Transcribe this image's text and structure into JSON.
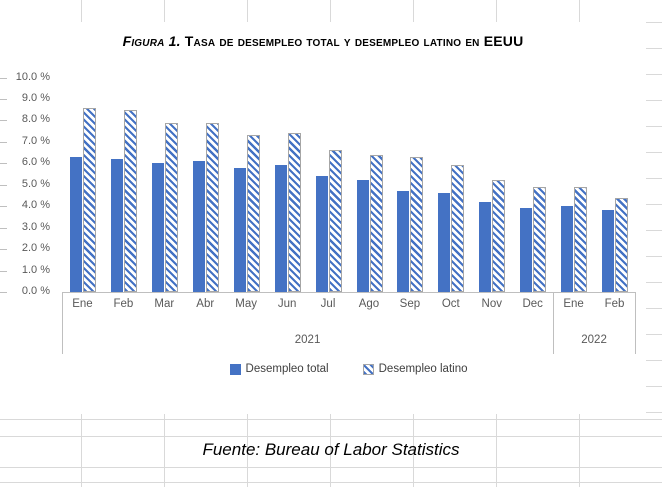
{
  "chart": {
    "title_prefix": "Figura 1.",
    "title_rest": " Tasa de desempleo total y desempleo latino en EEUU"
  },
  "chart_data": {
    "type": "bar",
    "title": "Figura 1. Tasa de desempleo total y desempleo latino en EEUU",
    "categories": [
      "Ene",
      "Feb",
      "Mar",
      "Abr",
      "May",
      "Jun",
      "Jul",
      "Ago",
      "Sep",
      "Oct",
      "Nov",
      "Dec",
      "Ene",
      "Feb"
    ],
    "year_groups": [
      {
        "label": "2021",
        "count": 12
      },
      {
        "label": "2022",
        "count": 2
      }
    ],
    "series": [
      {
        "name": "Desempleo total",
        "pattern": "solid",
        "color": "#4472C4",
        "values": [
          6.3,
          6.2,
          6.0,
          6.1,
          5.8,
          5.9,
          5.4,
          5.2,
          4.7,
          4.6,
          4.2,
          3.9,
          4.0,
          3.8
        ]
      },
      {
        "name": "Desempleo latino",
        "pattern": "diagonal-hatch",
        "color": "#4472C4",
        "values": [
          8.6,
          8.5,
          7.9,
          7.9,
          7.3,
          7.4,
          6.6,
          6.4,
          6.3,
          5.9,
          5.2,
          4.9,
          4.9,
          4.4
        ]
      }
    ],
    "ylim": [
      0,
      10
    ],
    "ytick_step": 1,
    "ytick_labels": [
      "0.0 %",
      "1.0 %",
      "2.0 %",
      "3.0 %",
      "4.0 %",
      "5.0 %",
      "6.0 %",
      "7.0 %",
      "8.0 %",
      "9.0 %",
      "10.0 %"
    ],
    "legend_position": "bottom",
    "grid": false
  },
  "footer": {
    "source_text": "Fuente: Bureau of Labor Statistics"
  },
  "colors": {
    "bar_blue": "#4472C4",
    "axis_gray": "#BFBFBF",
    "label_gray": "#595959",
    "sheet_grid_gray": "#D9D9D9"
  }
}
